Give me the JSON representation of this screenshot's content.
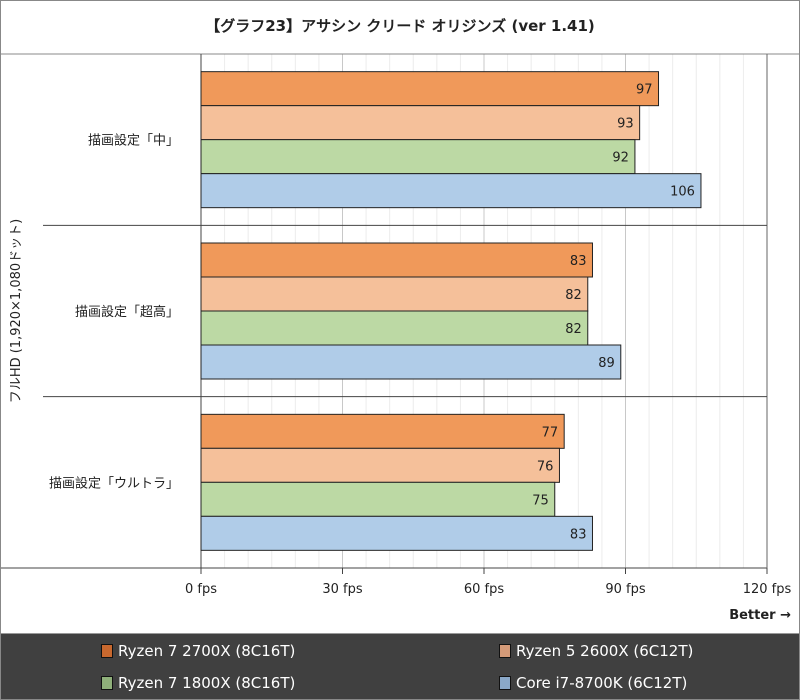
{
  "chart_data": {
    "type": "bar",
    "orientation": "horizontal",
    "title": "【グラフ23】アサシン クリード オリジンズ (ver 1.41)",
    "ylabel": "フルHD (1,920×1,080ドット)",
    "categories": [
      "描画設定「中」",
      "描画設定「超高」",
      "描画設定「ウルトラ」"
    ],
    "series": [
      {
        "name": "Ryzen 7 2700X (8C16T)",
        "color": "#f0995a",
        "legend_color": "#c8682e",
        "values": [
          97,
          83,
          77
        ]
      },
      {
        "name": "Ryzen 5 2600X (6C12T)",
        "color": "#f5c09a",
        "legend_color": "#d49a78",
        "values": [
          93,
          82,
          76
        ]
      },
      {
        "name": "Ryzen 7 1800X (8C16T)",
        "color": "#bcd9a4",
        "legend_color": "#8fb07a",
        "values": [
          92,
          82,
          75
        ]
      },
      {
        "name": "Core i7-8700K (6C12T)",
        "color": "#b0cce8",
        "legend_color": "#8aa8c8",
        "values": [
          106,
          89,
          83
        ]
      }
    ],
    "xlim": [
      0,
      120
    ],
    "xticks": [
      0,
      30,
      60,
      90,
      120
    ],
    "xtick_labels": [
      "0 fps",
      "30 fps",
      "60 fps",
      "90 fps",
      "120 fps"
    ],
    "minor_grid_step": 5,
    "grid": true,
    "legend_placement": "bottom",
    "annotation": "Better →"
  }
}
